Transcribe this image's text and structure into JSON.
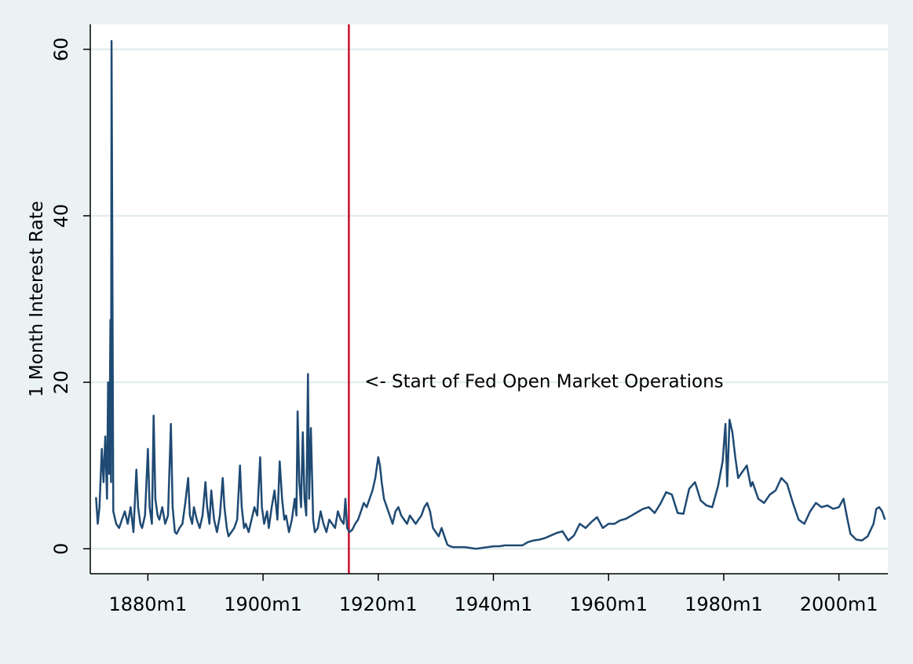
{
  "chart_data": {
    "type": "line",
    "title": "",
    "xlabel": "",
    "ylabel": "1 Month Interest Rate",
    "xlim": [
      1870,
      2008.5
    ],
    "ylim": [
      -3,
      63
    ],
    "x_ticks": [
      1880,
      1900,
      1920,
      1940,
      1960,
      1980,
      2000
    ],
    "x_tick_labels": [
      "1880m1",
      "1900m1",
      "1920m1",
      "1940m1",
      "1960m1",
      "1980m1",
      "2000m1"
    ],
    "y_ticks": [
      0,
      20,
      40,
      60
    ],
    "y_tick_labels": [
      "0",
      "20",
      "40",
      "60"
    ],
    "grid": true,
    "legend": "none",
    "colors": {
      "series": "#1f4a73",
      "event_line": "#c8102e",
      "background": "#eaf2f3",
      "plot_area": "#ffffff",
      "grid": "#e4eef0"
    },
    "event_line": {
      "x": 1914.9,
      "label": "<- Start of Fed Open Market Operations",
      "label_x": 1917.6,
      "label_y": 19.4
    },
    "series": [
      {
        "x": [
          1871.0,
          1871.3,
          1871.6,
          1872.0,
          1872.3,
          1872.6,
          1872.9,
          1873.1,
          1873.3,
          1873.5,
          1873.6,
          1873.7,
          1874.0,
          1874.5,
          1875.0,
          1875.5,
          1876.0,
          1876.5,
          1877.0,
          1877.5,
          1878.0,
          1878.3,
          1878.7,
          1879.0,
          1879.5,
          1880.0,
          1880.3,
          1880.7,
          1881.0,
          1881.3,
          1881.7,
          1882.0,
          1882.5,
          1883.0,
          1883.5,
          1884.0,
          1884.3,
          1884.7,
          1885.0,
          1885.5,
          1886.0,
          1886.5,
          1887.0,
          1887.3,
          1887.7,
          1888.0,
          1888.5,
          1889.0,
          1889.5,
          1890.0,
          1890.3,
          1890.7,
          1891.0,
          1891.5,
          1892.0,
          1892.5,
          1893.0,
          1893.3,
          1893.7,
          1894.0,
          1894.5,
          1895.0,
          1895.5,
          1896.0,
          1896.3,
          1896.7,
          1897.0,
          1897.5,
          1898.0,
          1898.5,
          1899.0,
          1899.5,
          1899.8,
          1900.2,
          1900.7,
          1901.0,
          1901.5,
          1902.0,
          1902.5,
          1902.9,
          1903.3,
          1903.7,
          1904.0,
          1904.5,
          1905.0,
          1905.5,
          1905.8,
          1906.0,
          1906.3,
          1906.6,
          1906.9,
          1907.2,
          1907.5,
          1907.8,
          1908.0,
          1908.3,
          1908.7,
          1909.0,
          1909.5,
          1910.0,
          1910.5,
          1911.0,
          1911.5,
          1912.0,
          1912.5,
          1913.0,
          1913.5,
          1914.0,
          1914.3,
          1914.6,
          1915.0,
          1915.5,
          1916.0,
          1916.5,
          1917.0,
          1917.5,
          1918.0,
          1918.5,
          1919.0,
          1919.5,
          1920.0,
          1920.3,
          1920.6,
          1921.0,
          1921.5,
          1922.0,
          1922.5,
          1923.0,
          1923.5,
          1924.0,
          1924.5,
          1925.0,
          1925.5,
          1926.0,
          1926.5,
          1927.0,
          1927.5,
          1928.0,
          1928.5,
          1929.0,
          1929.5,
          1930.0,
          1930.5,
          1931.0,
          1931.5,
          1932.0,
          1932.5,
          1933.0,
          1933.5,
          1934.0,
          1935.0,
          1936.0,
          1937.0,
          1938.0,
          1939.0,
          1940.0,
          1941.0,
          1942.0,
          1943.0,
          1944.0,
          1945.0,
          1946.0,
          1947.0,
          1948.0,
          1949.0,
          1950.0,
          1951.0,
          1952.0,
          1953.0,
          1954.0,
          1955.0,
          1956.0,
          1957.0,
          1958.0,
          1959.0,
          1960.0,
          1961.0,
          1962.0,
          1963.0,
          1964.0,
          1965.0,
          1966.0,
          1967.0,
          1968.0,
          1969.0,
          1970.0,
          1971.0,
          1972.0,
          1973.0,
          1974.0,
          1975.0,
          1976.0,
          1977.0,
          1978.0,
          1979.0,
          1979.8,
          1980.3,
          1980.6,
          1981.0,
          1981.5,
          1982.0,
          1982.5,
          1983.0,
          1984.0,
          1984.7,
          1985.0,
          1986.0,
          1987.0,
          1988.0,
          1989.0,
          1990.0,
          1991.0,
          1992.0,
          1993.0,
          1994.0,
          1995.0,
          1996.0,
          1997.0,
          1998.0,
          1999.0,
          2000.0,
          2000.8,
          2001.5,
          2002.0,
          2003.0,
          2004.0,
          2005.0,
          2006.0,
          2006.5,
          2007.0,
          2007.5,
          2008.0
        ],
        "values": [
          6.2,
          3.0,
          5.0,
          12.0,
          8.0,
          13.5,
          6.0,
          20.0,
          9.0,
          27.5,
          8.0,
          61.0,
          4.5,
          3.0,
          2.5,
          3.5,
          4.5,
          3.0,
          5.0,
          2.0,
          9.5,
          5.0,
          3.0,
          2.5,
          4.0,
          12.0,
          5.0,
          3.0,
          16.0,
          6.0,
          4.0,
          3.5,
          5.0,
          3.0,
          4.0,
          15.0,
          5.0,
          2.0,
          1.8,
          2.5,
          3.0,
          5.5,
          8.5,
          4.0,
          3.0,
          5.0,
          3.5,
          2.5,
          4.0,
          8.0,
          5.0,
          3.0,
          7.0,
          3.5,
          2.0,
          4.0,
          8.5,
          5.0,
          2.5,
          1.5,
          2.0,
          2.5,
          3.5,
          10.0,
          5.0,
          2.5,
          3.0,
          2.0,
          3.5,
          5.0,
          4.0,
          11.0,
          5.0,
          3.0,
          4.5,
          2.5,
          5.0,
          7.0,
          3.5,
          10.5,
          6.0,
          3.5,
          4.0,
          2.0,
          3.5,
          6.0,
          4.0,
          16.5,
          8.0,
          5.0,
          14.0,
          6.0,
          4.0,
          21.0,
          6.0,
          14.5,
          3.5,
          2.0,
          2.5,
          4.5,
          3.0,
          2.0,
          3.5,
          3.0,
          2.5,
          4.5,
          3.5,
          3.0,
          6.0,
          2.5,
          2.0,
          2.3,
          3.0,
          3.5,
          4.5,
          5.5,
          5.0,
          6.0,
          7.0,
          8.5,
          11.0,
          10.0,
          8.0,
          6.0,
          5.0,
          4.0,
          3.0,
          4.5,
          5.0,
          4.0,
          3.5,
          3.0,
          4.0,
          3.5,
          3.0,
          3.5,
          4.0,
          5.0,
          5.5,
          4.5,
          2.5,
          2.0,
          1.5,
          2.5,
          1.5,
          0.5,
          0.3,
          0.2,
          0.2,
          0.2,
          0.2,
          0.1,
          0.0,
          0.1,
          0.2,
          0.3,
          0.3,
          0.4,
          0.4,
          0.4,
          0.4,
          0.8,
          1.0,
          1.1,
          1.3,
          1.6,
          1.9,
          2.1,
          1.0,
          1.6,
          3.0,
          2.5,
          3.2,
          3.8,
          2.5,
          3.0,
          3.0,
          3.4,
          3.6,
          4.0,
          4.4,
          4.8,
          5.0,
          4.3,
          5.4,
          6.8,
          6.5,
          4.3,
          4.2,
          7.2,
          8.0,
          5.8,
          5.2,
          5.0,
          7.5,
          10.5,
          15.0,
          7.5,
          15.5,
          14.0,
          11.0,
          8.5,
          9.0,
          10.0,
          7.5,
          8.0,
          6.0,
          5.5,
          6.5,
          7.0,
          8.5,
          7.8,
          5.5,
          3.5,
          3.0,
          4.5,
          5.5,
          5.0,
          5.2,
          4.8,
          5.0,
          6.0,
          3.5,
          1.8,
          1.1,
          1.0,
          1.5,
          3.0,
          4.8,
          5.0,
          4.5,
          3.5
        ]
      }
    ]
  }
}
